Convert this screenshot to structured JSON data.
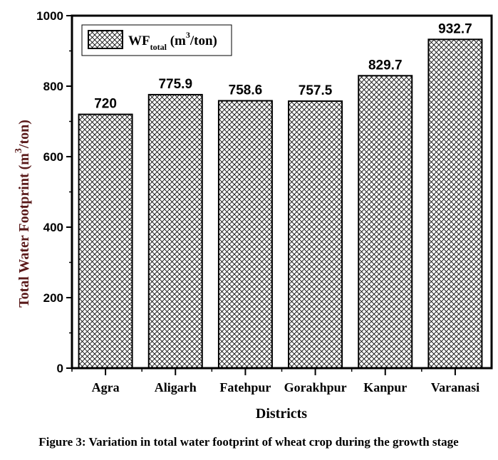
{
  "chart_data": {
    "type": "bar",
    "title": "",
    "categories": [
      "Agra",
      "Aligarh",
      "Fatehpur",
      "Gorakhpur",
      "Kanpur",
      "Varanasi"
    ],
    "values": [
      720,
      775.9,
      758.6,
      757.5,
      829.7,
      932.7
    ],
    "value_labels": [
      "720",
      "775.9",
      "758.6",
      "757.5",
      "829.7",
      "932.7"
    ],
    "xlabel": "Districts",
    "ylabel_main": "Total Water Footprint (m",
    "ylabel_sup": "3",
    "ylabel_end": "/ton)",
    "ylim": [
      0,
      1000
    ],
    "yticks": [
      "0",
      "200",
      "400",
      "600",
      "800",
      "1000"
    ],
    "legend": {
      "main": "WF",
      "sub": "total",
      "unit_a": " (m",
      "sup": "3",
      "unit_b": "/ton)",
      "position": "top-left"
    },
    "pattern": "crosshatch",
    "ylabel_color": "#5a1a1a"
  },
  "caption": "Figure 3: Variation in total water footprint of wheat crop during the growth stage"
}
